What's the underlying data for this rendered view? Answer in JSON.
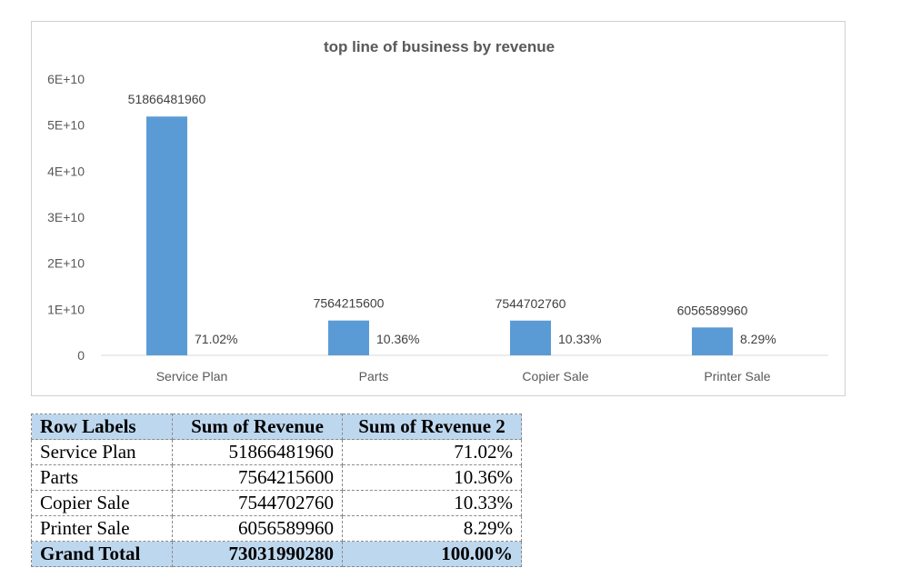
{
  "chart_data": {
    "type": "bar",
    "title": "top line of business by revenue",
    "categories": [
      "Service Plan",
      "Parts",
      "Copier Sale",
      "Printer Sale"
    ],
    "values": [
      51866481960,
      7564215600,
      7544702760,
      6056589960
    ],
    "value_labels": [
      "51866481960",
      "7564215600",
      "7544702760",
      "6056589960"
    ],
    "percent_labels": [
      "71.02%",
      "10.36%",
      "10.33%",
      "8.29%"
    ],
    "ylim": [
      0,
      60000000000
    ],
    "yticks": [
      0,
      10000000000,
      20000000000,
      30000000000,
      40000000000,
      50000000000,
      60000000000
    ],
    "ytick_labels": [
      "0",
      "1E+10",
      "2E+10",
      "3E+10",
      "4E+10",
      "5E+10",
      "6E+10"
    ],
    "bar_color": "#5b9bd5",
    "grid": false,
    "xlabel": "",
    "ylabel": ""
  },
  "pivot": {
    "headers": [
      "Row Labels",
      "Sum of Revenue",
      "Sum of Revenue 2"
    ],
    "rows": [
      [
        "Service Plan",
        "51866481960",
        "71.02%"
      ],
      [
        "Parts",
        "7564215600",
        "10.36%"
      ],
      [
        "Copier Sale",
        "7544702760",
        "10.33%"
      ],
      [
        "Printer Sale",
        "6056589960",
        "8.29%"
      ]
    ],
    "total": [
      "Grand Total",
      "73031990280",
      "100.00%"
    ],
    "header_color": "#bdd7ee"
  }
}
